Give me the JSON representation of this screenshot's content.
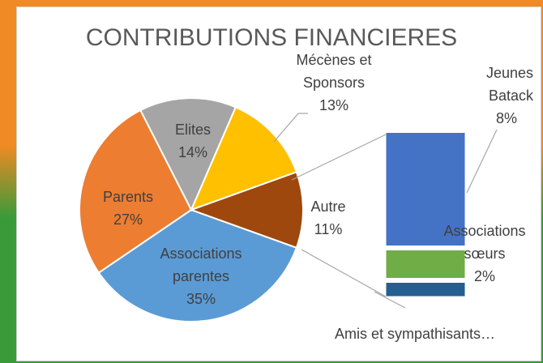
{
  "chart_data": {
    "type": "pie",
    "title": "CONTRIBUTIONS FINANCIERES",
    "categories": [
      "Associations parentes",
      "Parents",
      "Elites",
      "Mécènes et Sponsors",
      "Autre"
    ],
    "values": [
      35,
      27,
      14,
      13,
      11
    ],
    "value_labels": [
      "35%",
      "27%",
      "14%",
      "13%",
      "11%"
    ],
    "colors": [
      "#5b9bd5",
      "#ed7d31",
      "#a5a5a5",
      "#ffc000",
      "#9e480e"
    ],
    "bar": {
      "categories": [
        "Jeunes Batack",
        "Associations sœurs",
        "Amis et sympathisants…"
      ],
      "values": [
        8,
        2,
        1
      ],
      "value_labels": [
        "8%",
        "2%",
        null
      ],
      "colors": [
        "#4472c4",
        "#70ad47",
        "#255e91"
      ]
    }
  }
}
